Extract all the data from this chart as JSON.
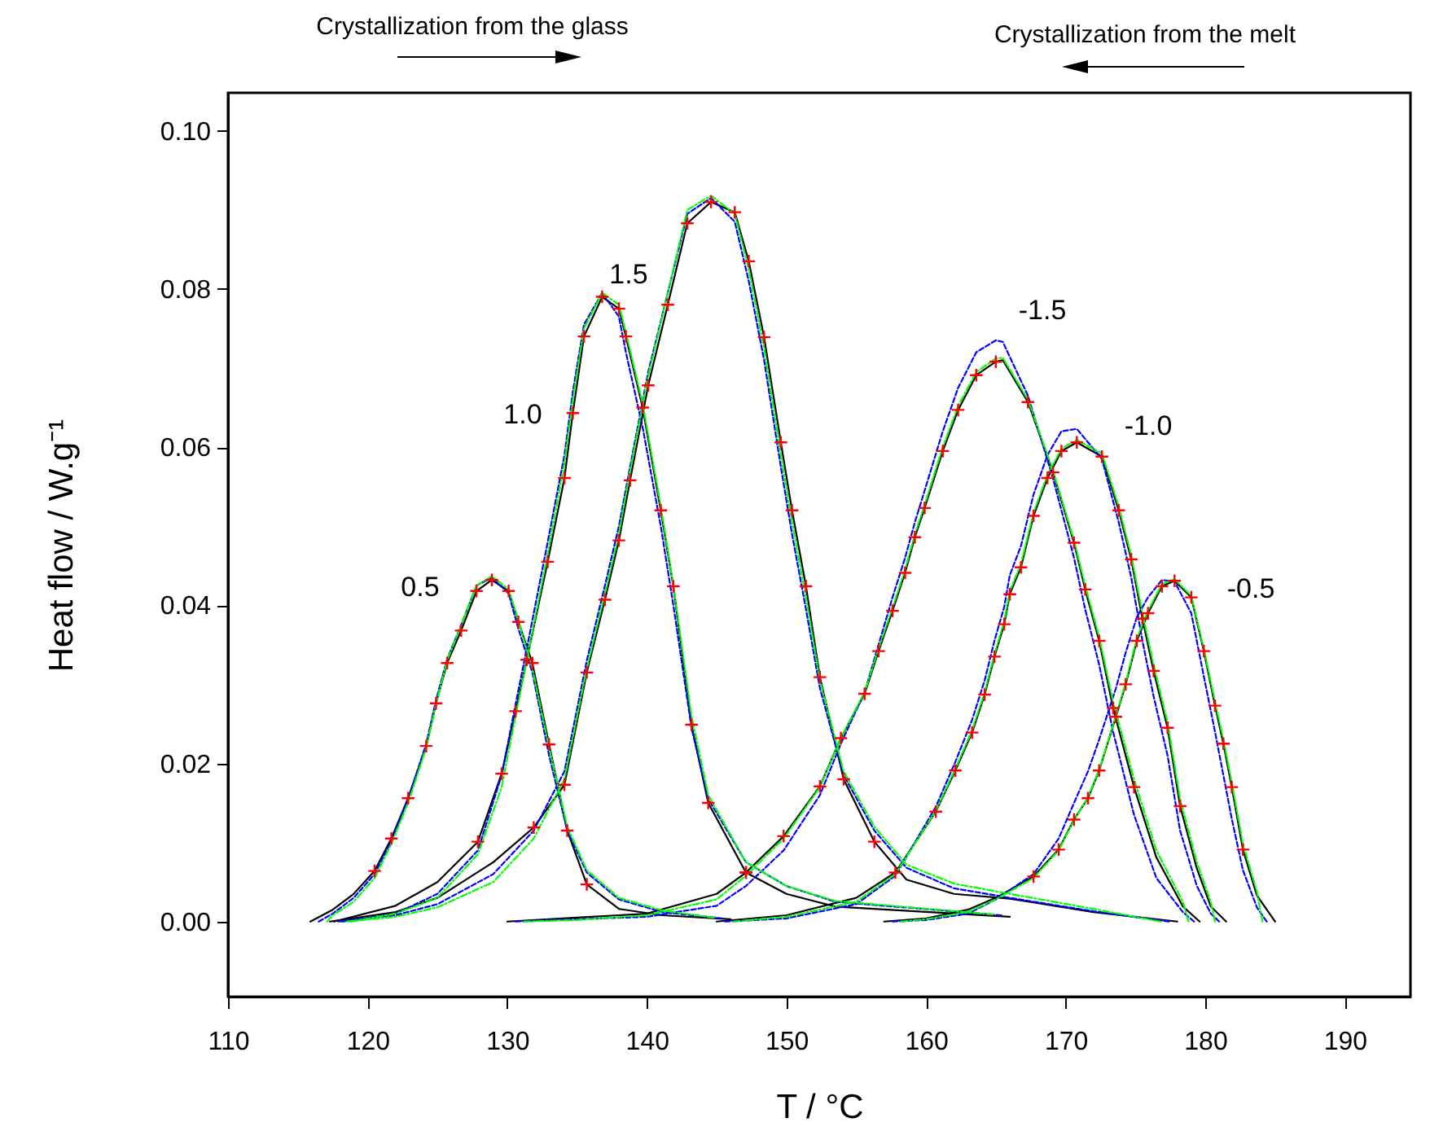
{
  "chart_data": {
    "type": "line",
    "xlabel": "T / °C",
    "ylabel": "Heat flow / W.g⁻¹",
    "xlim": [
      110,
      194.7
    ],
    "ylim": [
      -0.0095,
      0.1048
    ],
    "xticks": [
      110,
      120,
      130,
      140,
      150,
      160,
      170,
      180,
      190
    ],
    "yticks": [
      {
        "value": 0,
        "label": "0.00"
      },
      {
        "value": 0.02,
        "label": "0.02"
      },
      {
        "value": 0.04,
        "label": "0.04"
      },
      {
        "value": 0.06,
        "label": "0.06"
      },
      {
        "value": 0.08,
        "label": "0.08"
      },
      {
        "value": 0.1,
        "label": "0.10"
      }
    ],
    "grid": false,
    "annotations": [
      "Crystallization from the glass",
      "Crystallization from the melt",
      "0.5",
      "1.0",
      "1.5",
      "-1.5",
      "-1.0",
      "-0.5"
    ],
    "series": [
      {
        "color": "#000000",
        "line_style": "solid",
        "x": [
          115.9,
          117.5,
          119,
          120.5,
          121.7,
          122.9,
          124.2,
          124.9,
          125.7,
          126.7,
          127.8,
          128.9,
          130.1,
          130.8,
          131.8,
          133.0,
          134.3,
          135.7,
          138.0,
          141.1,
          146
        ],
        "values": [
          0,
          0.0015,
          0.0035,
          0.0064,
          0.0105,
          0.0156,
          0.0222,
          0.0276,
          0.0327,
          0.0368,
          0.0418,
          0.0432,
          0.0418,
          0.0379,
          0.0327,
          0.0224,
          0.0115,
          0.0047,
          0.0016,
          0.0008,
          0.0003
        ]
      },
      {
        "color": "#000000",
        "line_style": "solid",
        "x": [
          117.6,
          122,
          125,
          127.9,
          129.6,
          130.6,
          131.4,
          132.9,
          134.1,
          134.7,
          135.5,
          136.8,
          138.0,
          138.5,
          139.7,
          141.0,
          141.9,
          143.2,
          144.4,
          147.1,
          150,
          153.5,
          166
        ],
        "values": [
          0,
          0.002,
          0.005,
          0.0101,
          0.0187,
          0.0266,
          0.0331,
          0.0455,
          0.0561,
          0.0643,
          0.074,
          0.079,
          0.0775,
          0.074,
          0.065,
          0.052,
          0.0424,
          0.0249,
          0.015,
          0.0062,
          0.0035,
          0.0019,
          0.0006
        ]
      },
      {
        "color": "#000000",
        "line_style": "solid",
        "x": [
          117.3,
          122,
          125,
          129,
          131.9,
          134.1,
          135.7,
          137.0,
          138.0,
          138.8,
          140.1,
          141.5,
          142.9,
          144.6,
          146.3,
          147.3,
          148.4,
          149.6,
          150.4,
          151.4,
          152.4,
          154.1,
          156.3,
          158.6,
          162,
          166,
          172,
          178
        ],
        "values": [
          0,
          0.0012,
          0.003,
          0.0075,
          0.0119,
          0.0173,
          0.0315,
          0.0407,
          0.0482,
          0.0558,
          0.0678,
          0.078,
          0.0883,
          0.091,
          0.0897,
          0.0835,
          0.0739,
          0.0606,
          0.052,
          0.0424,
          0.0309,
          0.018,
          0.0101,
          0.0053,
          0.0035,
          0.0029,
          0.0012,
          0
        ]
      },
      {
        "color": "#000000",
        "line_style": "solid",
        "x": [
          130,
          135,
          140,
          145,
          147.1,
          149.8,
          152.4,
          153.9,
          155.6,
          156.6,
          157.6,
          158.5,
          159.2,
          159.9,
          161.2,
          162.3,
          163.6,
          165.0,
          165.5,
          167.3,
          169.1,
          170.6,
          171.4,
          172.4,
          173.4,
          174.9,
          176.5,
          178.4,
          179.6
        ],
        "values": [
          0,
          0.0005,
          0.001,
          0.0035,
          0.0062,
          0.0108,
          0.0171,
          0.0232,
          0.0288,
          0.0342,
          0.0393,
          0.0441,
          0.0486,
          0.0523,
          0.0595,
          0.0647,
          0.0691,
          0.0708,
          0.071,
          0.0657,
          0.0568,
          0.0479,
          0.042,
          0.0355,
          0.027,
          0.017,
          0.0081,
          0.0019,
          0
        ]
      },
      {
        "color": "#000000",
        "line_style": "solid",
        "x": [
          145,
          150,
          155,
          157.8,
          160.7,
          162.1,
          163.3,
          164.2,
          164.9,
          165.6,
          166.0,
          166.8,
          167.7,
          168.7,
          169.7,
          170.8,
          172.6,
          173.8,
          174.7,
          175.5,
          176.3,
          177.3,
          178.2,
          179.4,
          180.4,
          181.5
        ],
        "values": [
          0,
          0.0008,
          0.003,
          0.0062,
          0.0139,
          0.0191,
          0.0239,
          0.0287,
          0.0335,
          0.0376,
          0.0414,
          0.0448,
          0.0513,
          0.0561,
          0.0595,
          0.0606,
          0.0588,
          0.052,
          0.0458,
          0.0383,
          0.0317,
          0.0245,
          0.0146,
          0.0067,
          0.0019,
          0
        ]
      },
      {
        "color": "#000000",
        "line_style": "solid",
        "x": [
          157,
          160,
          163,
          165,
          167.7,
          169.5,
          170.6,
          171.6,
          172.4,
          173.6,
          174.3,
          175.1,
          175.9,
          176.9,
          177.8,
          179.0,
          179.9,
          180.7,
          181.3,
          181.9,
          182.7,
          183.7,
          185.0
        ],
        "values": [
          0,
          0.0004,
          0.0015,
          0.003,
          0.0057,
          0.0091,
          0.0129,
          0.0156,
          0.0191,
          0.0259,
          0.03,
          0.0355,
          0.039,
          0.0424,
          0.0431,
          0.041,
          0.0342,
          0.0273,
          0.0225,
          0.017,
          0.0091,
          0.0033,
          0
        ]
      },
      {
        "color": "#0000ff",
        "line_style": "dashed",
        "x": [
          116.5,
          117.5,
          119,
          120.5,
          121.7,
          122.9,
          124.2,
          124.9,
          125.7,
          126.7,
          127.8,
          128.9,
          130.1,
          130.8,
          131.8,
          133.0,
          134.3,
          135.7,
          138.0,
          141.1,
          145.4
        ],
        "values": [
          0,
          0.001,
          0.003,
          0.006,
          0.0102,
          0.0155,
          0.0225,
          0.028,
          0.0332,
          0.0375,
          0.0425,
          0.0435,
          0.0415,
          0.037,
          0.0315,
          0.021,
          0.0115,
          0.0062,
          0.0028,
          0.0012,
          0.0004
        ]
      },
      {
        "color": "#0000ff",
        "line_style": "dashed",
        "x": [
          118.2,
          122,
          125,
          127.9,
          129.6,
          130.6,
          131.4,
          132.9,
          134.1,
          134.7,
          135.5,
          136.8,
          138.0,
          138.5,
          139.7,
          141.0,
          141.9,
          143.2,
          144.4,
          147.1,
          150,
          153.5,
          165.4
        ],
        "values": [
          0,
          0.001,
          0.0035,
          0.009,
          0.0185,
          0.0275,
          0.0345,
          0.048,
          0.059,
          0.067,
          0.0755,
          0.0795,
          0.0765,
          0.072,
          0.0625,
          0.05,
          0.04,
          0.0245,
          0.0155,
          0.0075,
          0.0045,
          0.0025,
          0.0008
        ]
      },
      {
        "color": "#0000ff",
        "line_style": "dashed",
        "x": [
          117.9,
          122,
          125,
          129,
          131.9,
          134.1,
          135.7,
          137.0,
          138.0,
          138.8,
          140.1,
          141.5,
          142.9,
          144.6,
          146.3,
          147.3,
          148.4,
          149.6,
          150.4,
          151.4,
          152.4,
          154.1,
          156.3,
          158.6,
          162,
          166,
          172,
          177.4
        ],
        "values": [
          0,
          0.0008,
          0.0022,
          0.006,
          0.0115,
          0.019,
          0.033,
          0.0425,
          0.05,
          0.0575,
          0.0695,
          0.0795,
          0.0895,
          0.0915,
          0.0885,
          0.081,
          0.071,
          0.0575,
          0.049,
          0.0395,
          0.0295,
          0.0185,
          0.0115,
          0.0068,
          0.0042,
          0.003,
          0.0013,
          0
        ]
      },
      {
        "color": "#0000ff",
        "line_style": "dashed",
        "x": [
          130.6,
          135,
          140,
          145,
          147.1,
          149.8,
          152.4,
          153.9,
          155.6,
          156.6,
          157.6,
          158.5,
          159.2,
          159.9,
          161.2,
          162.3,
          163.6,
          165.0,
          165.5,
          167.3,
          169.1,
          170.6,
          171.4,
          172.4,
          173.4,
          174.9,
          176.5,
          178.4,
          179.2
        ],
        "values": [
          0,
          0.0003,
          0.0006,
          0.002,
          0.0045,
          0.009,
          0.016,
          0.0225,
          0.029,
          0.035,
          0.041,
          0.046,
          0.0505,
          0.0545,
          0.062,
          0.0675,
          0.072,
          0.0735,
          0.0733,
          0.0665,
          0.056,
          0.046,
          0.0395,
          0.0325,
          0.024,
          0.0135,
          0.0055,
          0.0012,
          0
        ]
      },
      {
        "color": "#0000ff",
        "line_style": "dashed",
        "x": [
          145.6,
          150,
          155,
          157.8,
          160.7,
          162.1,
          163.3,
          164.2,
          164.9,
          165.6,
          166.0,
          166.8,
          167.7,
          168.7,
          169.7,
          170.8,
          172.6,
          173.8,
          174.7,
          175.5,
          176.3,
          177.3,
          178.2,
          179.4,
          180.4,
          181.0
        ],
        "values": [
          0,
          0.0004,
          0.0022,
          0.0058,
          0.0145,
          0.0202,
          0.0255,
          0.0305,
          0.0355,
          0.0398,
          0.0438,
          0.0475,
          0.054,
          0.059,
          0.062,
          0.0623,
          0.0585,
          0.0505,
          0.0435,
          0.0355,
          0.0285,
          0.021,
          0.0115,
          0.0045,
          0.001,
          0
        ]
      },
      {
        "color": "#0000ff",
        "line_style": "dashed",
        "x": [
          157.6,
          160,
          163,
          165,
          167.7,
          169.5,
          170.6,
          171.6,
          172.4,
          173.6,
          174.3,
          175.1,
          175.9,
          176.9,
          177.8,
          179.0,
          179.9,
          180.7,
          181.3,
          181.9,
          182.7,
          183.7,
          184.4
        ],
        "values": [
          0,
          0.0002,
          0.001,
          0.0028,
          0.006,
          0.0105,
          0.015,
          0.019,
          0.023,
          0.0295,
          0.034,
          0.0385,
          0.041,
          0.0432,
          0.043,
          0.039,
          0.031,
          0.024,
          0.0185,
          0.013,
          0.0065,
          0.0018,
          0
        ]
      },
      {
        "color": "#00ff00",
        "line_style": "dashdot",
        "x": [
          117.1,
          117.5,
          119,
          120.5,
          121.7,
          122.9,
          124.2,
          124.9,
          125.7,
          126.7,
          127.8,
          128.9,
          130.1,
          130.8,
          131.8,
          133.0,
          134.3,
          135.7,
          138.0,
          141.1,
          144.8
        ],
        "values": [
          0,
          0.0008,
          0.0025,
          0.0055,
          0.0098,
          0.015,
          0.022,
          0.0275,
          0.033,
          0.0375,
          0.0425,
          0.0437,
          0.042,
          0.038,
          0.032,
          0.022,
          0.012,
          0.0065,
          0.003,
          0.0014,
          0.0005
        ]
      },
      {
        "color": "#00ff00",
        "line_style": "dashdot",
        "x": [
          118.8,
          122,
          125,
          127.9,
          129.6,
          130.6,
          131.4,
          132.9,
          134.1,
          134.7,
          135.5,
          136.8,
          138.0,
          138.5,
          139.7,
          141.0,
          141.9,
          143.2,
          144.4,
          147.1,
          150,
          153.5,
          164.8
        ],
        "values": [
          0,
          0.001,
          0.003,
          0.0085,
          0.017,
          0.026,
          0.033,
          0.0465,
          0.058,
          0.066,
          0.075,
          0.0795,
          0.078,
          0.0745,
          0.0655,
          0.0525,
          0.0425,
          0.026,
          0.016,
          0.0075,
          0.0045,
          0.0026,
          0.0009
        ]
      },
      {
        "color": "#00ff00",
        "line_style": "dashdot",
        "x": [
          118.5,
          122,
          125,
          129,
          131.9,
          134.1,
          135.7,
          137.0,
          138.0,
          138.8,
          140.1,
          141.5,
          142.9,
          144.6,
          146.3,
          147.3,
          148.4,
          149.6,
          150.4,
          151.4,
          152.4,
          154.1,
          156.3,
          158.6,
          162,
          166,
          172,
          176.8
        ],
        "values": [
          0,
          0.0006,
          0.0018,
          0.005,
          0.0105,
          0.018,
          0.032,
          0.0415,
          0.049,
          0.057,
          0.069,
          0.0795,
          0.09,
          0.0918,
          0.0895,
          0.0825,
          0.0725,
          0.059,
          0.0505,
          0.041,
          0.0305,
          0.019,
          0.012,
          0.0072,
          0.0048,
          0.0035,
          0.0016,
          0
        ]
      },
      {
        "color": "#00ff00",
        "line_style": "dashdot",
        "x": [
          131.2,
          135,
          140,
          145,
          147.1,
          149.8,
          152.4,
          153.9,
          155.6,
          156.6,
          157.6,
          158.5,
          159.2,
          159.9,
          161.2,
          162.3,
          163.6,
          165.0,
          165.5,
          167.3,
          169.1,
          170.6,
          171.4,
          172.4,
          173.4,
          174.9,
          176.5,
          178.4,
          178.8
        ],
        "values": [
          0,
          0.0002,
          0.0008,
          0.0028,
          0.0058,
          0.0105,
          0.017,
          0.0232,
          0.029,
          0.0345,
          0.0397,
          0.0445,
          0.049,
          0.0527,
          0.06,
          0.0652,
          0.0695,
          0.0712,
          0.0713,
          0.066,
          0.057,
          0.0482,
          0.0425,
          0.036,
          0.0278,
          0.018,
          0.009,
          0.0025,
          0
        ]
      },
      {
        "color": "#00ff00",
        "line_style": "dashdot",
        "x": [
          146.2,
          150,
          155,
          157.8,
          160.7,
          162.1,
          163.3,
          164.2,
          164.9,
          165.6,
          166.0,
          166.8,
          167.7,
          168.7,
          169.7,
          170.8,
          172.6,
          173.8,
          174.7,
          175.5,
          176.3,
          177.3,
          178.2,
          179.4,
          180.4,
          180.7
        ],
        "values": [
          0,
          0.0006,
          0.0025,
          0.006,
          0.014,
          0.0193,
          0.0242,
          0.029,
          0.0338,
          0.038,
          0.0418,
          0.0452,
          0.0517,
          0.0565,
          0.0598,
          0.0609,
          0.0592,
          0.0525,
          0.0463,
          0.039,
          0.0325,
          0.0252,
          0.0155,
          0.0075,
          0.0025,
          0
        ]
      },
      {
        "color": "#00ff00",
        "line_style": "dashdot",
        "x": [
          158.2,
          160,
          163,
          165,
          167.7,
          169.5,
          170.6,
          171.6,
          172.4,
          173.6,
          174.3,
          175.1,
          175.9,
          176.9,
          177.8,
          179.0,
          179.9,
          180.7,
          181.3,
          181.9,
          182.7,
          183.7,
          184.1
        ],
        "values": [
          0,
          0.0003,
          0.0012,
          0.0028,
          0.0055,
          0.009,
          0.0128,
          0.0157,
          0.0192,
          0.026,
          0.0302,
          0.0358,
          0.0393,
          0.0427,
          0.0433,
          0.0412,
          0.0345,
          0.0278,
          0.023,
          0.0176,
          0.0098,
          0.0038,
          0
        ]
      },
      {
        "type": "scatter",
        "color": "#ff0000",
        "marker": "cross",
        "x": [
          120.5,
          121.7,
          122.9,
          124.2,
          124.9,
          125.7,
          126.7,
          127.8,
          128.9,
          130.1,
          130.8,
          131.8,
          133.0,
          134.3,
          135.7
        ],
        "values": [
          0.0064,
          0.0105,
          0.0156,
          0.0222,
          0.0276,
          0.0327,
          0.0368,
          0.0418,
          0.0432,
          0.0418,
          0.0379,
          0.0327,
          0.0224,
          0.0115,
          0.0047
        ]
      },
      {
        "type": "scatter",
        "color": "#ff0000",
        "marker": "cross",
        "x": [
          127.9,
          129.6,
          130.6,
          131.4,
          132.9,
          134.1,
          134.7,
          135.5,
          136.8,
          138.0,
          138.5,
          139.7,
          141.0,
          141.9,
          143.2,
          144.4,
          147.1
        ],
        "values": [
          0.0101,
          0.0187,
          0.0266,
          0.0331,
          0.0455,
          0.0561,
          0.0643,
          0.074,
          0.079,
          0.0775,
          0.074,
          0.065,
          0.052,
          0.0424,
          0.0249,
          0.015,
          0.0062
        ]
      },
      {
        "type": "scatter",
        "color": "#ff0000",
        "marker": "cross",
        "x": [
          131.9,
          134.1,
          135.7,
          137.0,
          138.0,
          138.8,
          140.1,
          141.5,
          142.9,
          144.6,
          146.3,
          147.3,
          148.4,
          149.6,
          150.4,
          151.4,
          152.4,
          154.1,
          156.3
        ],
        "values": [
          0.0119,
          0.0173,
          0.0315,
          0.0407,
          0.0482,
          0.0558,
          0.0678,
          0.078,
          0.0883,
          0.091,
          0.0897,
          0.0835,
          0.0739,
          0.0606,
          0.052,
          0.0424,
          0.0309,
          0.018,
          0.0101
        ]
      },
      {
        "type": "scatter",
        "color": "#ff0000",
        "marker": "cross",
        "x": [
          147.1,
          149.8,
          152.4,
          153.9,
          155.6,
          156.6,
          157.6,
          158.5,
          159.2,
          159.9,
          161.2,
          162.3,
          163.6,
          165.0,
          167.3,
          169.1,
          170.6,
          171.4,
          172.4,
          173.4,
          174.9
        ],
        "values": [
          0.0062,
          0.0108,
          0.0171,
          0.0232,
          0.0288,
          0.0342,
          0.0393,
          0.0441,
          0.0486,
          0.0523,
          0.0595,
          0.0647,
          0.0691,
          0.0708,
          0.0657,
          0.0568,
          0.0479,
          0.042,
          0.0355,
          0.027,
          0.017
        ]
      },
      {
        "type": "scatter",
        "color": "#ff0000",
        "marker": "cross",
        "x": [
          157.8,
          160.7,
          162.1,
          163.3,
          164.2,
          164.9,
          165.6,
          166.0,
          166.8,
          167.7,
          168.7,
          169.7,
          170.8,
          172.6,
          173.8,
          174.7,
          175.5,
          176.3,
          177.3,
          178.2
        ],
        "values": [
          0.0062,
          0.0139,
          0.0191,
          0.0239,
          0.0287,
          0.0335,
          0.0376,
          0.0414,
          0.0448,
          0.0513,
          0.0561,
          0.0595,
          0.0606,
          0.0588,
          0.052,
          0.0458,
          0.0383,
          0.0317,
          0.0245,
          0.0146
        ]
      },
      {
        "type": "scatter",
        "color": "#ff0000",
        "marker": "cross",
        "x": [
          167.7,
          169.5,
          170.6,
          171.6,
          172.4,
          173.6,
          174.3,
          175.1,
          175.9,
          176.9,
          177.8,
          179.0,
          179.9,
          180.7,
          181.3,
          181.9,
          182.7
        ],
        "values": [
          0.0057,
          0.0091,
          0.0129,
          0.0156,
          0.0191,
          0.0259,
          0.03,
          0.0355,
          0.039,
          0.0424,
          0.0431,
          0.041,
          0.0342,
          0.0273,
          0.0225,
          0.017,
          0.0091
        ]
      }
    ]
  }
}
